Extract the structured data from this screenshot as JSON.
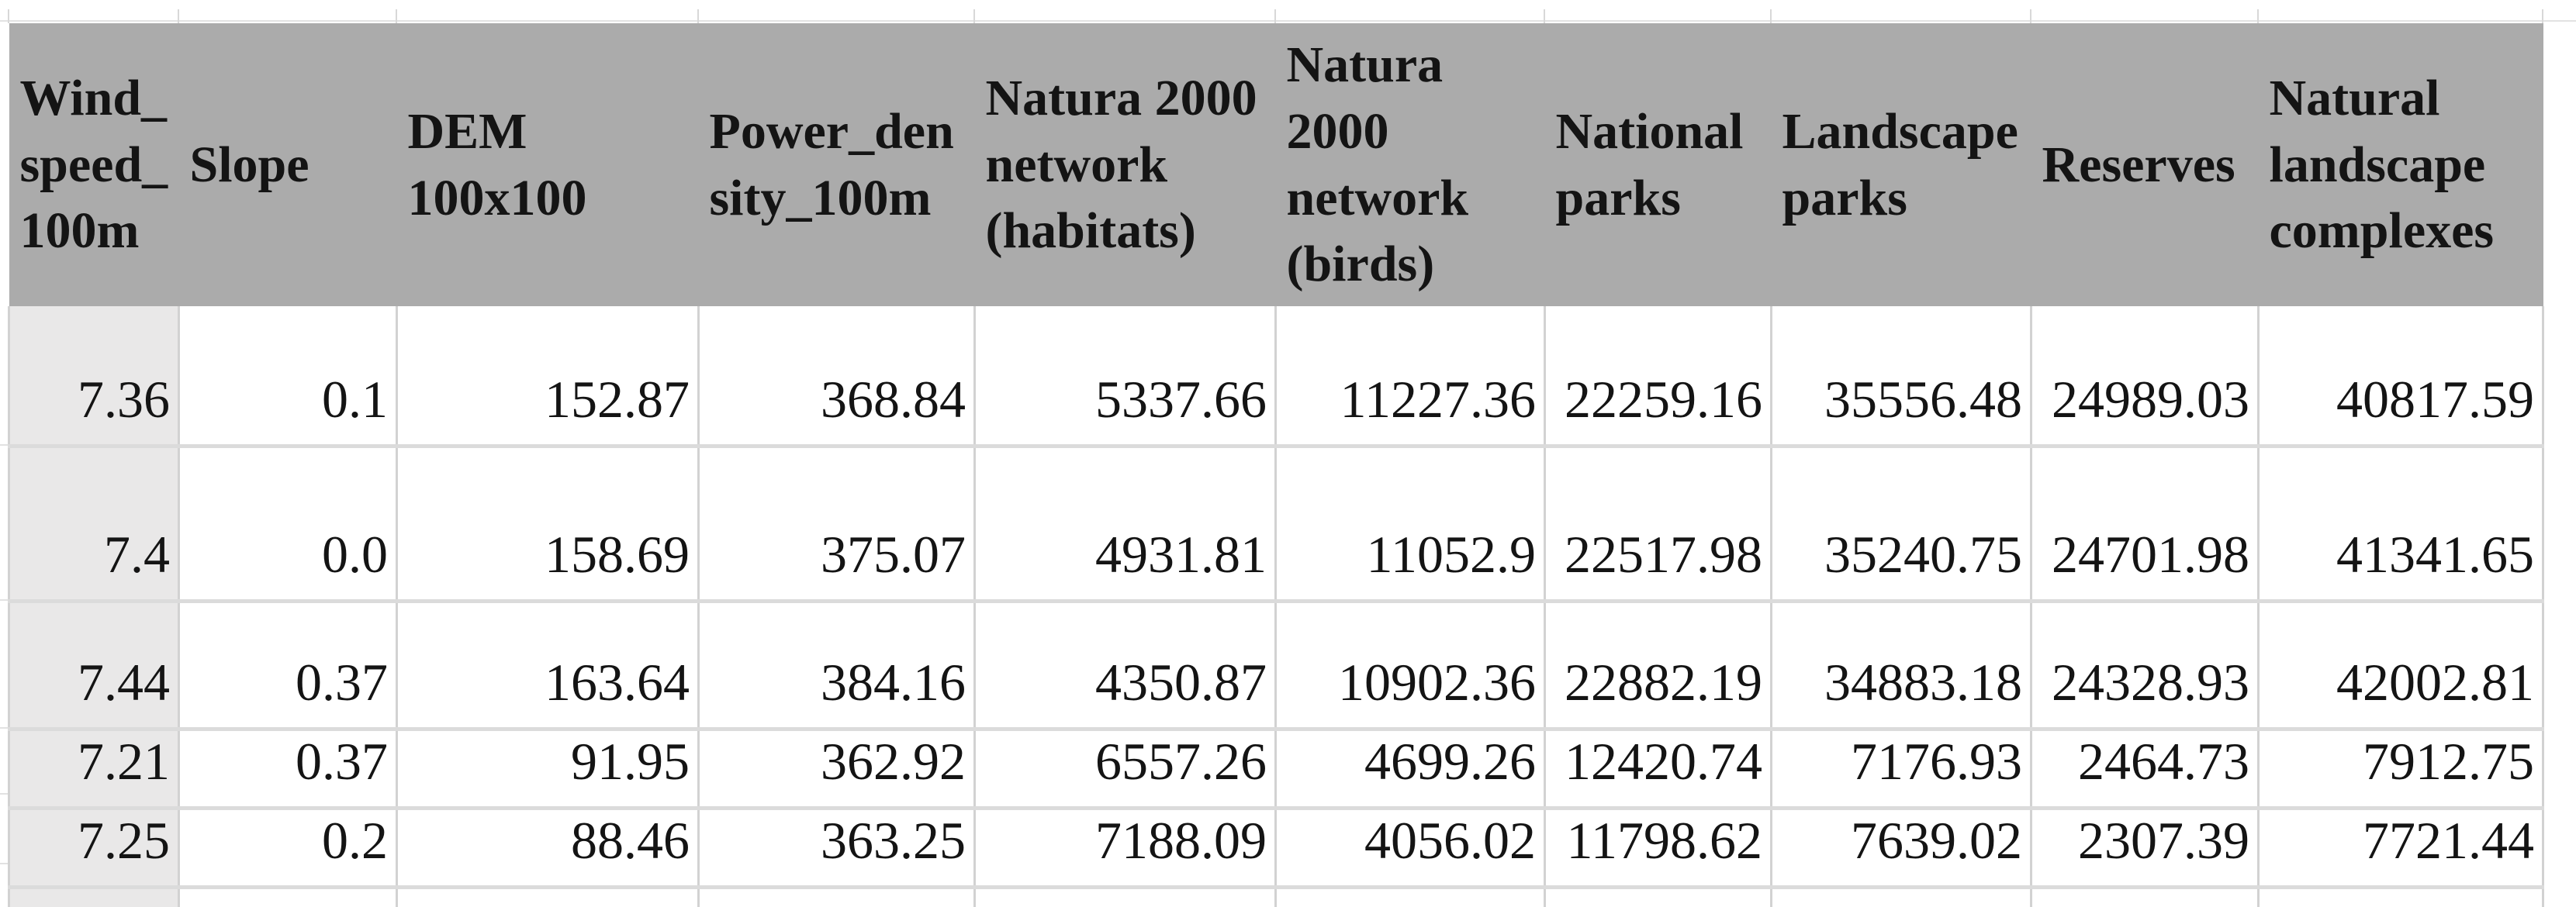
{
  "table": {
    "columns": [
      {
        "label": "Wind_\nspeed_\n100m",
        "name": "wind-speed-100m"
      },
      {
        "label": "Slope",
        "name": "slope"
      },
      {
        "label": "DEM\n100x100",
        "name": "dem-100x100"
      },
      {
        "label": "Power_den\nsity_100m",
        "name": "power-density-100m"
      },
      {
        "label": "Natura 2000\nnetwork\n(habitats)",
        "name": "natura-2000-network-habitats"
      },
      {
        "label": "Natura\n2000\nnetwork\n(birds)",
        "name": "natura-2000-network-birds"
      },
      {
        "label": "National\nparks",
        "name": "national-parks"
      },
      {
        "label": "Landscape\nparks",
        "name": "landscape-parks"
      },
      {
        "label": "Reserves",
        "name": "reserves"
      },
      {
        "label": "Natural\nlandscape\ncomplexes",
        "name": "natural-landscape-complexes"
      }
    ],
    "rows": [
      [
        "7.36",
        "0.1",
        "152.87",
        "368.84",
        "5337.66",
        "11227.36",
        "22259.16",
        "35556.48",
        "24989.03",
        "40817.59"
      ],
      [
        "7.4",
        "0.0",
        "158.69",
        "375.07",
        "4931.81",
        "11052.9",
        "22517.98",
        "35240.75",
        "24701.98",
        "41341.65"
      ],
      [
        "7.44",
        "0.37",
        "163.64",
        "384.16",
        "4350.87",
        "10902.36",
        "22882.19",
        "34883.18",
        "24328.93",
        "42002.81"
      ],
      [
        "7.21",
        "0.37",
        "91.95",
        "362.92",
        "6557.26",
        "4699.26",
        "12420.74",
        "7176.93",
        "2464.73",
        "7912.75"
      ],
      [
        "7.25",
        "0.2",
        "88.46",
        "363.25",
        "7188.09",
        "4056.02",
        "11798.62",
        "7639.02",
        "2307.39",
        "7721.44"
      ]
    ]
  },
  "colors": {
    "header_bg": "#ABABAB",
    "first_column_bg": "#E9E8E8",
    "gridline": "#D2D2D2",
    "row_border": "#DBDBDB",
    "text": "#141414"
  }
}
